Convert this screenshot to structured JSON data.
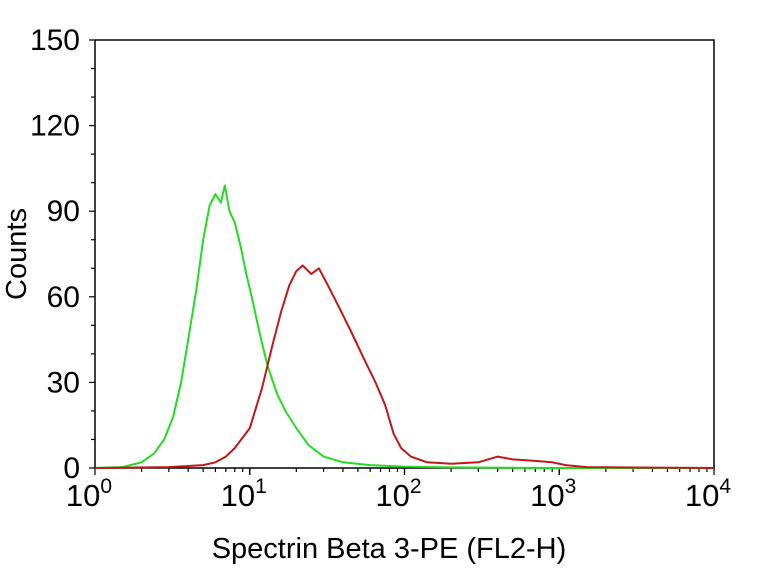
{
  "chart_data": {
    "type": "line",
    "title": "",
    "xlabel": "Spectrin Beta 3-PE (FL2-H)",
    "ylabel": "Counts",
    "xscale": "log",
    "xlim": [
      1,
      10000
    ],
    "ylim": [
      0,
      150
    ],
    "grid": false,
    "x_ticks": [
      {
        "base": "10",
        "exp": "0",
        "value": 1
      },
      {
        "base": "10",
        "exp": "1",
        "value": 10
      },
      {
        "base": "10",
        "exp": "2",
        "value": 100
      },
      {
        "base": "10",
        "exp": "3",
        "value": 1000
      },
      {
        "base": "10",
        "exp": "4",
        "value": 10000
      }
    ],
    "y_ticks": [
      {
        "label": "0",
        "value": 0
      },
      {
        "label": "30",
        "value": 30
      },
      {
        "label": "60",
        "value": 60
      },
      {
        "label": "90",
        "value": 90
      },
      {
        "label": "120",
        "value": 120
      },
      {
        "label": "150",
        "value": 150
      }
    ],
    "series": [
      {
        "color": "#22dd22",
        "points": [
          [
            1.0,
            0
          ],
          [
            1.5,
            0.3
          ],
          [
            2.0,
            2
          ],
          [
            2.4,
            5
          ],
          [
            2.8,
            10
          ],
          [
            3.2,
            18
          ],
          [
            3.6,
            30
          ],
          [
            4.0,
            45
          ],
          [
            4.5,
            62
          ],
          [
            5.0,
            80
          ],
          [
            5.5,
            92
          ],
          [
            6.0,
            96
          ],
          [
            6.5,
            93
          ],
          [
            6.9,
            99
          ],
          [
            7.4,
            90
          ],
          [
            8.0,
            86
          ],
          [
            8.7,
            78
          ],
          [
            9.5,
            68
          ],
          [
            10.5,
            58
          ],
          [
            11.5,
            48
          ],
          [
            13.0,
            36
          ],
          [
            15.0,
            26
          ],
          [
            17.0,
            20
          ],
          [
            20.0,
            14
          ],
          [
            24.0,
            8
          ],
          [
            30.0,
            4
          ],
          [
            40.0,
            2
          ],
          [
            60.0,
            1
          ],
          [
            100.0,
            0.5
          ],
          [
            200.0,
            0.2
          ],
          [
            1000.0,
            0
          ],
          [
            10000.0,
            0
          ]
        ]
      },
      {
        "color": "#c01818",
        "points": [
          [
            1.0,
            0
          ],
          [
            3.0,
            0.3
          ],
          [
            5.0,
            1
          ],
          [
            6.0,
            2
          ],
          [
            7.0,
            4
          ],
          [
            8.0,
            7
          ],
          [
            10.0,
            14
          ],
          [
            12.0,
            28
          ],
          [
            14.0,
            43
          ],
          [
            16.0,
            55
          ],
          [
            18.0,
            64
          ],
          [
            20.0,
            69
          ],
          [
            22.0,
            71
          ],
          [
            25.0,
            68
          ],
          [
            28.0,
            70
          ],
          [
            32.0,
            64
          ],
          [
            38.0,
            56
          ],
          [
            45.0,
            48
          ],
          [
            55.0,
            38
          ],
          [
            65.0,
            30
          ],
          [
            75.0,
            22
          ],
          [
            85.0,
            12
          ],
          [
            95.0,
            7
          ],
          [
            110.0,
            4
          ],
          [
            140.0,
            2
          ],
          [
            200.0,
            1.5
          ],
          [
            300.0,
            2
          ],
          [
            400.0,
            4
          ],
          [
            500.0,
            3
          ],
          [
            700.0,
            2.5
          ],
          [
            900.0,
            2
          ],
          [
            1100.0,
            1
          ],
          [
            1500.0,
            0.3
          ],
          [
            10000.0,
            0
          ]
        ]
      }
    ]
  }
}
